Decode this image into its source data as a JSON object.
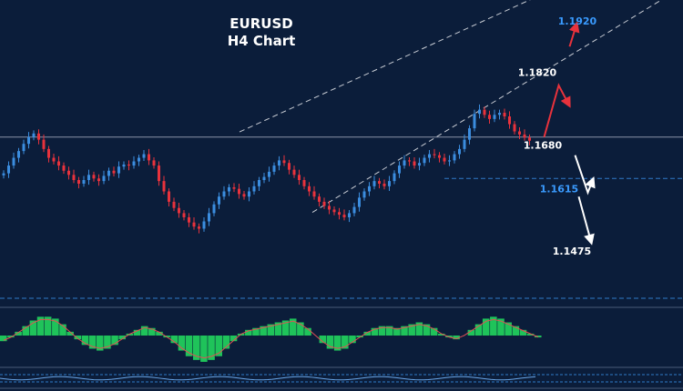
{
  "chart_data": {
    "type": "candlestick",
    "title": "EURUSD",
    "subtitle": "H4 Chart",
    "ylim": [
      1.138,
      1.196
    ],
    "colors": {
      "background": "#0b1d3a",
      "bull_candle": "#3b8ddf",
      "bear_candle": "#e8323c",
      "channel_line": "#c8ccd4",
      "level_line": "#2f7bc8",
      "osc_bar": "#1fc35a",
      "signal_line": "#e05055",
      "up_arrow": "#e8323c",
      "down_arrow": "#ffffff",
      "accent_label": "#3a9bff"
    },
    "close_path": [
      1.1625,
      1.164,
      1.1655,
      1.1668,
      1.1682,
      1.1695,
      1.1702,
      1.169,
      1.1672,
      1.1655,
      1.1648,
      1.164,
      1.163,
      1.1622,
      1.1612,
      1.1605,
      1.1612,
      1.1622,
      1.1615,
      1.161,
      1.162,
      1.163,
      1.1625,
      1.1638,
      1.1642,
      1.164,
      1.1648,
      1.1655,
      1.1662,
      1.165,
      1.164,
      1.161,
      1.159,
      1.157,
      1.1558,
      1.1548,
      1.154,
      1.153,
      1.1522,
      1.1518,
      1.1532,
      1.1548,
      1.1565,
      1.158,
      1.159,
      1.1598,
      1.1595,
      1.1585,
      1.158,
      1.159,
      1.16,
      1.1612,
      1.1618,
      1.1628,
      1.164,
      1.165,
      1.1645,
      1.1632,
      1.1622,
      1.1612,
      1.16,
      1.159,
      1.158,
      1.157,
      1.1562,
      1.1555,
      1.155,
      1.1545,
      1.154,
      1.1548,
      1.156,
      1.1578,
      1.159,
      1.16,
      1.161,
      1.1605,
      1.16,
      1.161,
      1.1625,
      1.164,
      1.165,
      1.1648,
      1.164,
      1.1645,
      1.1655,
      1.1662,
      1.166,
      1.1655,
      1.1648,
      1.165,
      1.1662,
      1.1672,
      1.169,
      1.1712,
      1.174,
      1.1748,
      1.1738,
      1.173,
      1.1738,
      1.1742,
      1.1735,
      1.172,
      1.1706,
      1.17,
      1.1694,
      1.1688
    ],
    "horizontal_lines": [
      {
        "label": "",
        "y": 1.1695,
        "style": "solid"
      },
      {
        "label": "1.1615",
        "y": 1.1615,
        "style": "dashed"
      }
    ],
    "annotations": [
      {
        "label": "1.1920",
        "y": 1.192,
        "color": "accent"
      },
      {
        "label": "1.1820",
        "y": 1.182,
        "color": "white"
      },
      {
        "label": "1.1680",
        "y": 1.168,
        "color": "white"
      },
      {
        "label": "1.1475",
        "y": 1.1475,
        "color": "white"
      }
    ],
    "channel": {
      "upper": [
        [
          38,
          1.1665
        ],
        [
          105,
          1.196
        ]
      ],
      "lower": [
        [
          58,
          1.1528
        ],
        [
          105,
          1.1805
        ]
      ]
    },
    "oscillator": {
      "type": "histogram",
      "values": [
        -0.3,
        -0.1,
        0.2,
        0.5,
        0.8,
        1.0,
        1.0,
        0.9,
        0.6,
        0.2,
        -0.2,
        -0.5,
        -0.7,
        -0.8,
        -0.7,
        -0.5,
        -0.2,
        0.1,
        0.3,
        0.5,
        0.4,
        0.2,
        -0.1,
        -0.4,
        -0.8,
        -1.1,
        -1.3,
        -1.4,
        -1.3,
        -1.1,
        -0.7,
        -0.3,
        0.1,
        0.3,
        0.4,
        0.5,
        0.6,
        0.7,
        0.8,
        0.9,
        0.7,
        0.4,
        0.0,
        -0.4,
        -0.7,
        -0.8,
        -0.7,
        -0.4,
        -0.1,
        0.2,
        0.4,
        0.5,
        0.5,
        0.4,
        0.5,
        0.6,
        0.7,
        0.6,
        0.4,
        0.1,
        -0.1,
        -0.2,
        0.0,
        0.3,
        0.6,
        0.9,
        1.0,
        0.9,
        0.7,
        0.5,
        0.3,
        0.1,
        -0.1
      ],
      "range": [
        -1.5,
        1.5
      ]
    }
  }
}
